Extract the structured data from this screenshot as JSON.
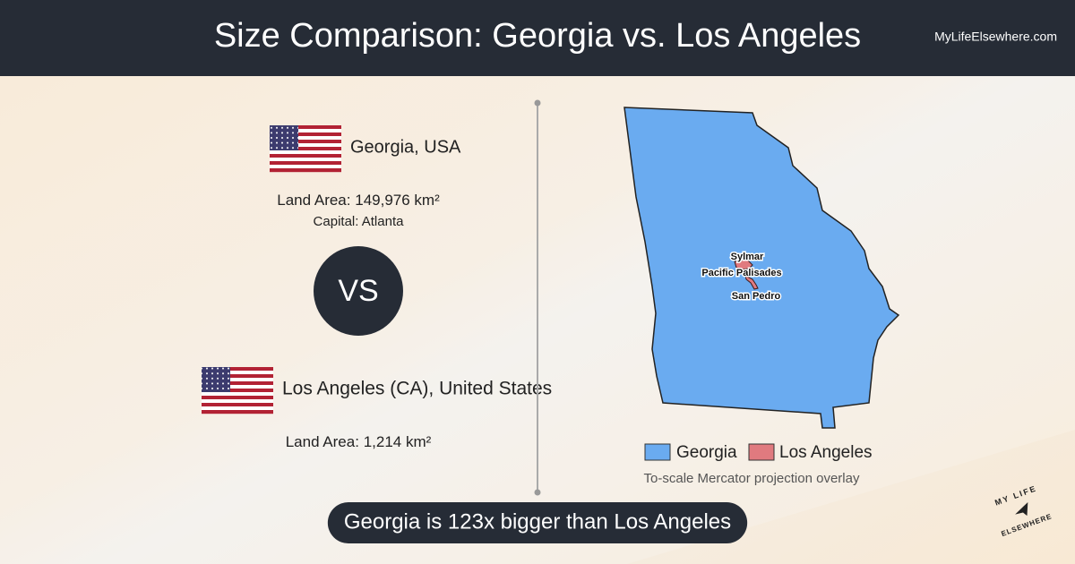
{
  "header": {
    "title": "Size Comparison: Georgia vs. Los Angeles",
    "site": "MyLifeElsewhere.com"
  },
  "first": {
    "name": "Georgia, USA",
    "area_label": "Land Area:",
    "area": "149,976 km²",
    "capital_label": "Capital:",
    "capital": "Atlanta"
  },
  "versus": "VS",
  "second": {
    "name": "Los Angeles (CA), United States",
    "area_label": "Land Area:",
    "area": "1,214 km²"
  },
  "map": {
    "labels": [
      "Sylmar",
      "Pacific Palisades",
      "San Pedro"
    ],
    "legend": [
      "Georgia",
      "Los Angeles"
    ],
    "caption": "To-scale Mercator projection overlay"
  },
  "summary": "Georgia is 123x bigger than Los Angeles",
  "logo": [
    "MY LIFE",
    "ELSEWHERE"
  ]
}
